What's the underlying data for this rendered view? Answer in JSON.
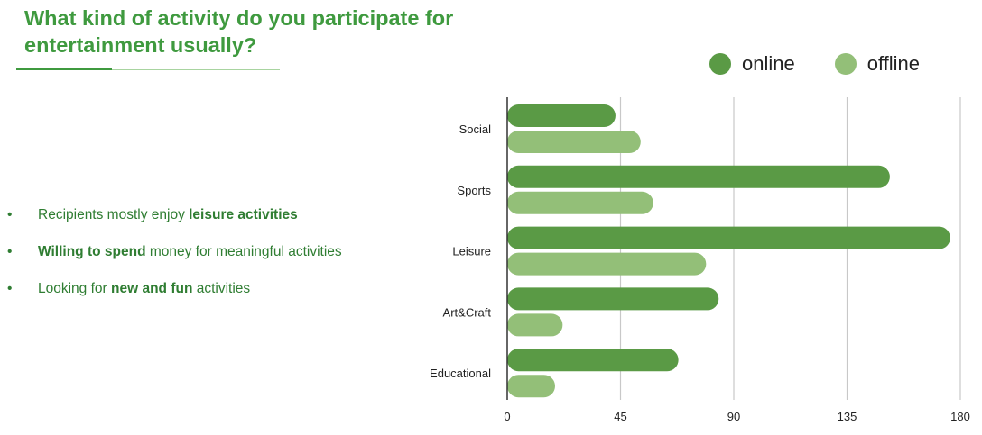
{
  "title": "What kind of activity do you participate for entertainment usually?",
  "bullets": [
    {
      "pre": "Recipients mostly enjoy ",
      "bold": "leisure activities",
      "post": ""
    },
    {
      "pre": "",
      "bold": "Willing to spend",
      "post": " money for meaningful activities"
    },
    {
      "pre": "Looking for ",
      "bold": "new and fun",
      "post": " activities"
    }
  ],
  "bullet_glyph": "•",
  "colors": {
    "online": "#5a9a45",
    "offline": "#93bf78",
    "gridline": "#c8c8c8",
    "axis": "#333333",
    "title": "#3f9a3f"
  },
  "chart_data": {
    "type": "bar",
    "orientation": "horizontal",
    "categories": [
      "Social",
      "Sports",
      "Leisure",
      "Art&Craft",
      "Educational"
    ],
    "series": [
      {
        "name": "online",
        "values": [
          43,
          152,
          176,
          84,
          68
        ]
      },
      {
        "name": "offline",
        "values": [
          53,
          58,
          79,
          22,
          19
        ]
      }
    ],
    "xlim": [
      0,
      180
    ],
    "xticks": [
      0,
      45,
      90,
      135,
      180
    ],
    "grid": true,
    "legend": "top-right"
  }
}
